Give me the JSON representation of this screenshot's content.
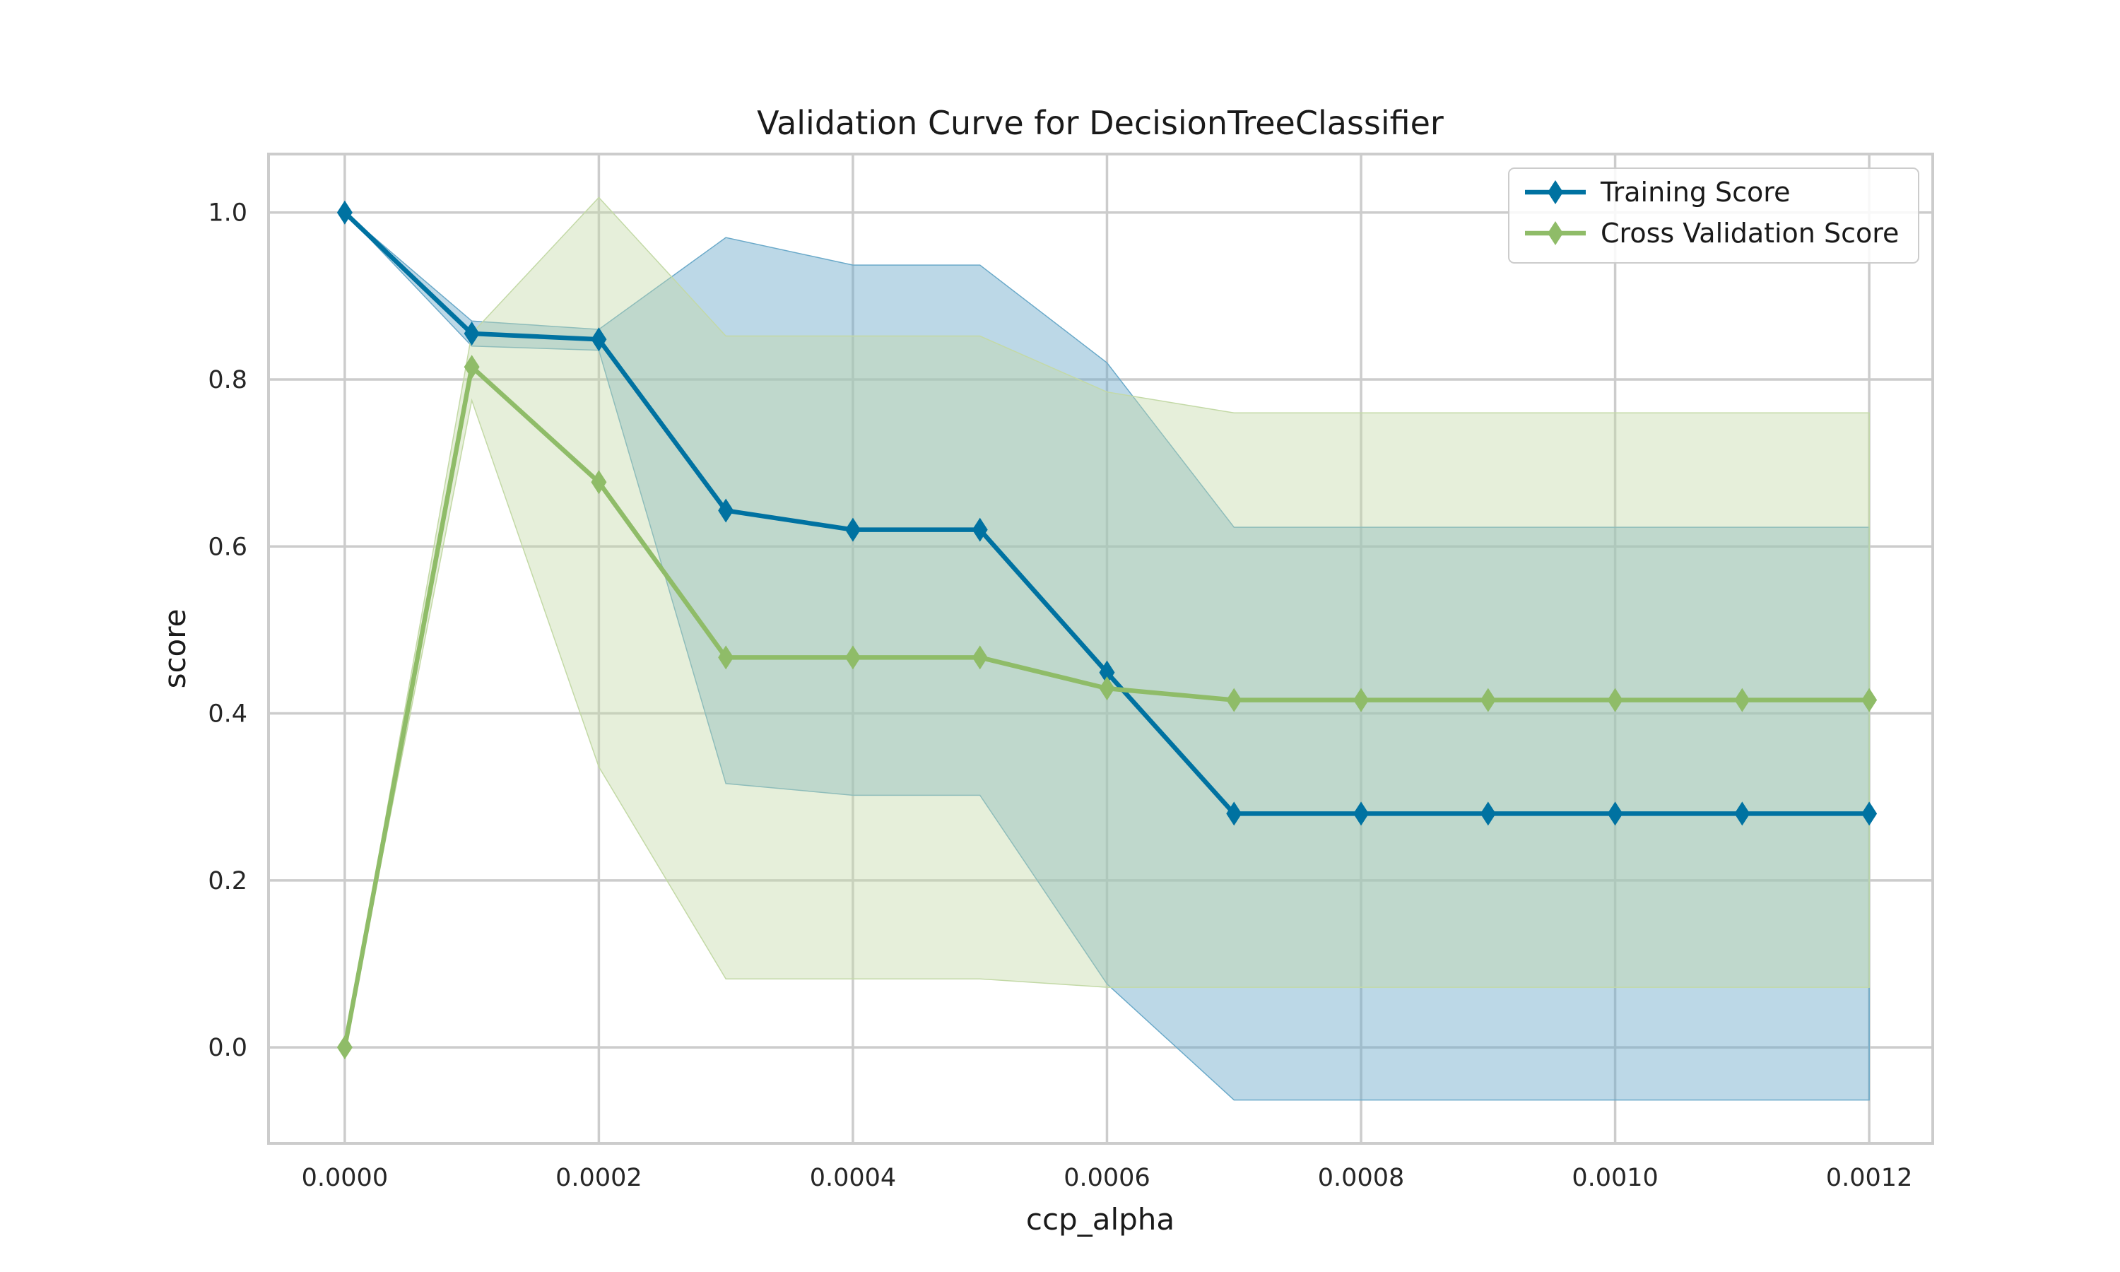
{
  "chart_data": {
    "type": "line",
    "title": "Validation Curve for DecisionTreeClassifier",
    "xlabel": "ccp_alpha",
    "ylabel": "score",
    "xlim": [
      -6e-05,
      0.00125
    ],
    "ylim": [
      -0.115,
      1.07
    ],
    "xticks": [
      0.0,
      0.0002,
      0.0004,
      0.0006,
      0.0008,
      0.001,
      0.0012
    ],
    "xtick_labels": [
      "0.0000",
      "0.0002",
      "0.0004",
      "0.0006",
      "0.0008",
      "0.0010",
      "0.0012"
    ],
    "yticks": [
      0.0,
      0.2,
      0.4,
      0.6,
      0.8,
      1.0
    ],
    "ytick_labels": [
      "0.0",
      "0.2",
      "0.4",
      "0.6",
      "0.8",
      "1.0"
    ],
    "grid": true,
    "legend_position": "top-right",
    "x": [
      0.0,
      0.0001,
      0.0002,
      0.0003,
      0.0004,
      0.0005,
      0.0006,
      0.0007,
      0.0008,
      0.0009,
      0.001,
      0.0011,
      0.0012
    ],
    "series": [
      {
        "name": "Training Score",
        "color": "#0072a1",
        "band_color": "#6aa9c9",
        "values": [
          1.0,
          0.855,
          0.848,
          0.643,
          0.62,
          0.62,
          0.449,
          0.28,
          0.28,
          0.28,
          0.28,
          0.28,
          0.28
        ],
        "upper": [
          1.0,
          0.87,
          0.86,
          0.97,
          0.937,
          0.937,
          0.82,
          0.623,
          0.623,
          0.623,
          0.623,
          0.623,
          0.623
        ],
        "lower": [
          1.0,
          0.84,
          0.835,
          0.316,
          0.302,
          0.302,
          0.076,
          -0.063,
          -0.063,
          -0.063,
          -0.063,
          -0.063,
          -0.063
        ]
      },
      {
        "name": "Cross Validation Score",
        "color": "#8fbc68",
        "band_color": "#c3d9a6",
        "values": [
          0.0,
          0.815,
          0.677,
          0.467,
          0.467,
          0.467,
          0.43,
          0.416,
          0.416,
          0.416,
          0.416,
          0.416,
          0.416
        ],
        "upper": [
          0.0,
          0.855,
          1.018,
          0.852,
          0.852,
          0.852,
          0.785,
          0.76,
          0.76,
          0.76,
          0.76,
          0.76,
          0.76
        ],
        "lower": [
          0.0,
          0.775,
          0.336,
          0.082,
          0.082,
          0.082,
          0.072,
          0.072,
          0.072,
          0.072,
          0.072,
          0.072,
          0.072
        ]
      }
    ]
  }
}
